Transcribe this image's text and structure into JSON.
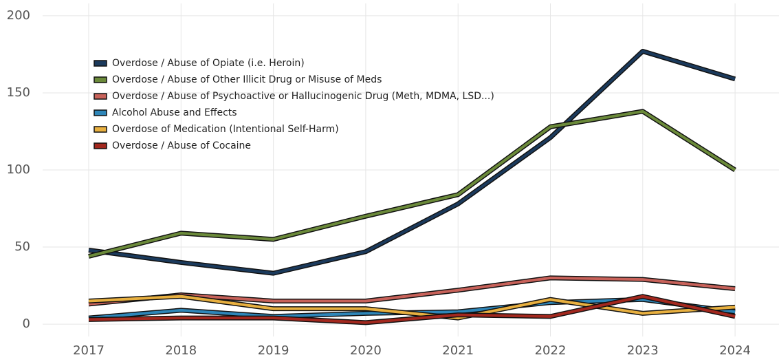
{
  "chart_data": {
    "type": "line",
    "categories": [
      "2017",
      "2018",
      "2019",
      "2020",
      "2021",
      "2022",
      "2023",
      "2024"
    ],
    "series": [
      {
        "name": "Overdose / Abuse of Opiate (i.e. Heroin)",
        "color": "#1b3a5c",
        "values": [
          48,
          40,
          33,
          47,
          78,
          121,
          177,
          159
        ]
      },
      {
        "name": "Overdose / Abuse of Other Illicit Drug or Misuse of Meds",
        "color": "#6b8a3a",
        "values": [
          44,
          59,
          55,
          70,
          84,
          128,
          138,
          100
        ]
      },
      {
        "name": "Overdose / Abuse of Psychoactive or Hallucinogenic Drug (Meth, MDMA, LSD...)",
        "color": "#c8625a",
        "values": [
          13,
          19,
          15,
          15,
          22,
          30,
          29,
          23
        ]
      },
      {
        "name": "Alcohol Abuse and Effects",
        "color": "#2e86b8",
        "values": [
          4,
          9,
          5,
          7,
          8,
          14,
          16,
          8
        ]
      },
      {
        "name": "Overdose of Medication (Intentional Self-Harm)",
        "color": "#e8b040",
        "values": [
          15,
          18,
          10,
          10,
          4,
          16,
          7,
          11
        ]
      },
      {
        "name": "Overdose / Abuse of Cocaine",
        "color": "#a3281e",
        "values": [
          3,
          4,
          4,
          1,
          6,
          5,
          18,
          5
        ]
      }
    ],
    "ylim": [
      -8,
      208
    ],
    "yticks": [
      0,
      50,
      100,
      150,
      200
    ],
    "grid": true,
    "legend": "top-left"
  }
}
